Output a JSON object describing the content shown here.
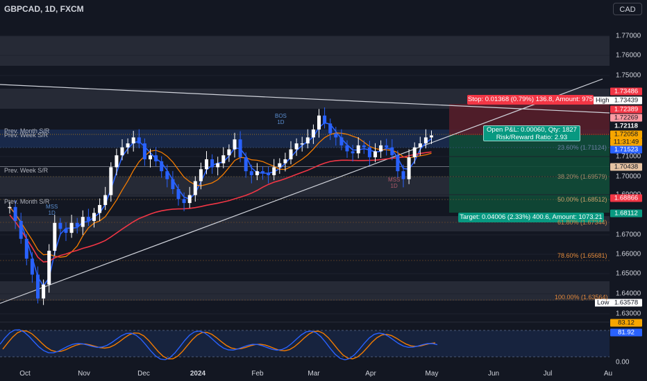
{
  "header": {
    "symbol": "GBPCAD, 1D, FXCM",
    "currency": "CAD"
  },
  "price_axis": {
    "labels": [
      "1.77000",
      "1.76000",
      "1.75000",
      "1.71000",
      "1.70000",
      "1.69000",
      "1.67000",
      "1.66000",
      "1.65000",
      "1.64000",
      "1.63000"
    ]
  },
  "time_axis": {
    "labels": [
      "Oct",
      "Nov",
      "Dec",
      "2024",
      "Feb",
      "Mar",
      "Apr",
      "May",
      "Jun",
      "Jul",
      "Au"
    ]
  },
  "price_tags": {
    "stop": "1.73486",
    "high": "1.73439",
    "red1": "1.72389",
    "red2": "1.72269",
    "dark1": "1.72118",
    "orange1": "1.72058",
    "countdown": "11:31:49",
    "blue": "1.71523",
    "brown": "1.70438",
    "bottom": "1.68866",
    "target": "1.68112",
    "low": "1.63578"
  },
  "high_low": {
    "high": "High",
    "low": "Low"
  },
  "position": {
    "stop_text": "Stop: 0.01368 (0.79%) 136.8, Amount: 975",
    "target_text": "Target: 0.04006 (2.33%) 400.6, Amount: 1073.21",
    "pnl_line1": "Open P&L: 0.00060, Qty: 1827",
    "pnl_line2": "Risk/Reward Ratio: 2.93"
  },
  "zones": {
    "prev_month_top": "Prev. Month S/R",
    "prev_week_top": "Prev. Week S/R",
    "prev_week": "Prev. Week S/R",
    "prev_month": "Prev. Month S/R"
  },
  "fib": {
    "f236": "23.60% (1.71124)",
    "f382": "38.20% (1.69579)",
    "f500": "50.00% (1.68512)",
    "f618": "61.80% (1.67344)",
    "f786": "78.60% (1.65681)",
    "f1000": "100.00% (1.63564)"
  },
  "markers": {
    "bos": "BOS",
    "bos_tf": "1D",
    "mss_left": "MSS",
    "mss_left_tf": "1D",
    "mss_right": "MSS",
    "mss_right_tf": "1D"
  },
  "stoch": {
    "zero": "0.00",
    "k_value": "81.92",
    "d_value": "83.12"
  },
  "chart_data": {
    "type": "candlestick",
    "symbol": "GBPCAD",
    "timeframe": "1D",
    "y_range": [
      1.63,
      1.777
    ],
    "x_ticks": [
      "Oct",
      "Nov",
      "Dec",
      "2024",
      "Feb",
      "Mar",
      "Apr",
      "May",
      "Jun",
      "Jul",
      "Au"
    ],
    "close_path": [
      1.684,
      1.677,
      1.668,
      1.658,
      1.65,
      1.638,
      1.645,
      1.662,
      1.676,
      1.673,
      1.671,
      1.676,
      1.674,
      1.679,
      1.677,
      1.681,
      1.685,
      1.69,
      1.704,
      1.71,
      1.714,
      1.716,
      1.719,
      1.716,
      1.708,
      1.71,
      1.707,
      1.702,
      1.698,
      1.693,
      1.688,
      1.686,
      1.69,
      1.697,
      1.703,
      1.708,
      1.704,
      1.706,
      1.71,
      1.713,
      1.718,
      1.709,
      1.702,
      1.7,
      1.702,
      1.701,
      1.7,
      1.704,
      1.706,
      1.708,
      1.713,
      1.716,
      1.716,
      1.719,
      1.723,
      1.73,
      1.726,
      1.721,
      1.719,
      1.715,
      1.712,
      1.711,
      1.715,
      1.714,
      1.709,
      1.712,
      1.715,
      1.714,
      1.71,
      1.702,
      1.698,
      1.709,
      1.714,
      1.716,
      1.719,
      1.72
    ],
    "last_price": "1.72058",
    "stoch_k": 81.92,
    "stoch_d": 83.12
  }
}
